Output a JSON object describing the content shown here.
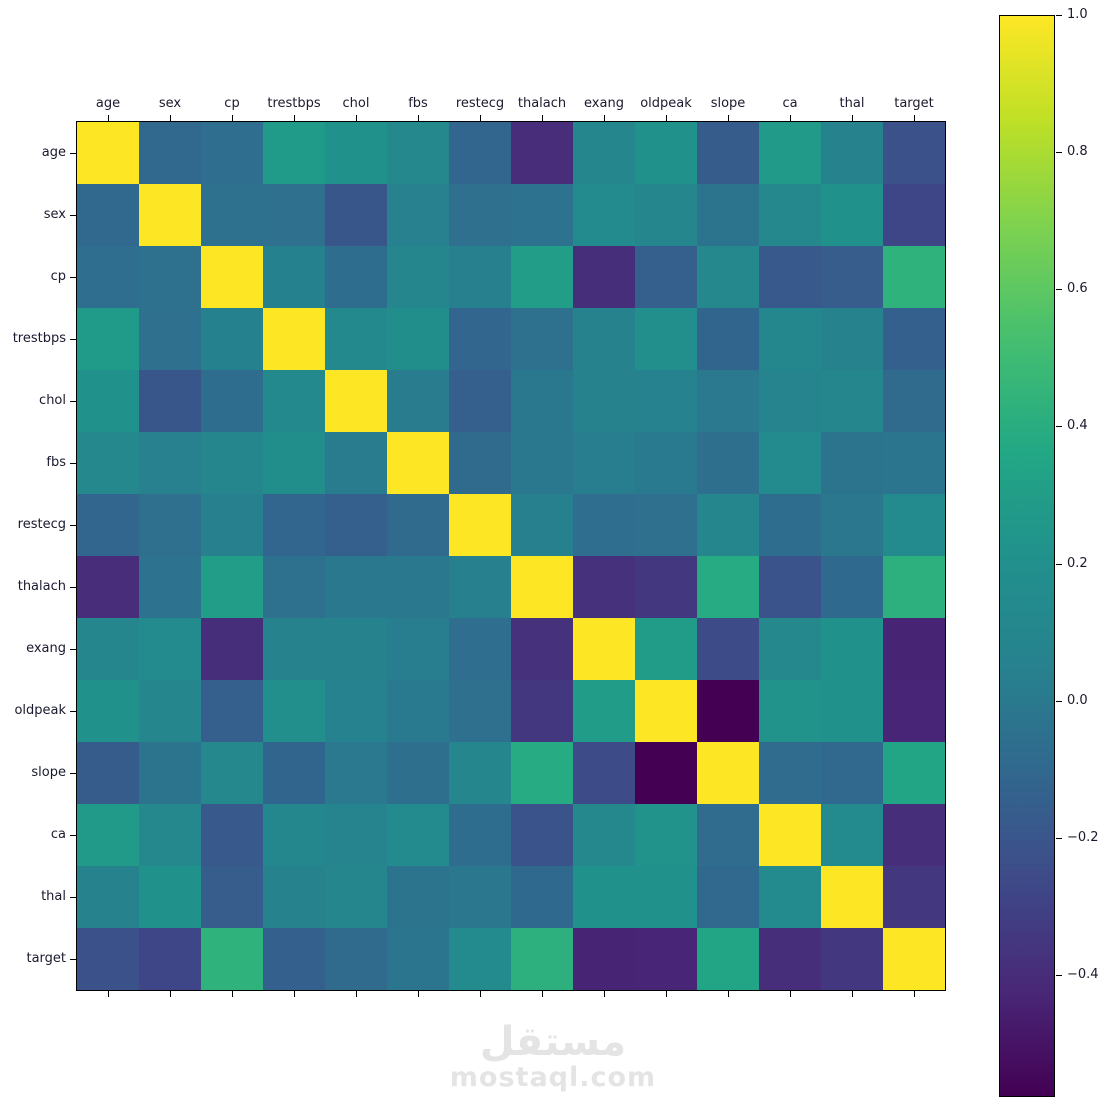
{
  "chart_data": {
    "type": "heatmap",
    "title": "",
    "colormap": "viridis",
    "vmin": -0.578,
    "vmax": 1.0,
    "grid": false,
    "legend_position": "right-colorbar",
    "colorbar_ticks": [
      1.0,
      0.8,
      0.6,
      0.4,
      0.2,
      0.0,
      -0.2,
      -0.4
    ],
    "categories": [
      "age",
      "sex",
      "cp",
      "trestbps",
      "chol",
      "fbs",
      "restecg",
      "thalach",
      "exang",
      "oldpeak",
      "slope",
      "ca",
      "thal",
      "target"
    ],
    "matrix": [
      [
        1.0,
        -0.098,
        -0.069,
        0.279,
        0.214,
        0.121,
        -0.116,
        -0.399,
        0.097,
        0.21,
        -0.169,
        0.276,
        0.068,
        -0.225
      ],
      [
        -0.098,
        1.0,
        -0.049,
        -0.057,
        -0.198,
        0.045,
        -0.058,
        -0.044,
        0.142,
        0.096,
        -0.031,
        0.118,
        0.21,
        -0.281
      ],
      [
        -0.069,
        -0.049,
        1.0,
        0.048,
        -0.077,
        0.094,
        0.044,
        0.296,
        -0.394,
        -0.149,
        0.12,
        -0.181,
        -0.162,
        0.434
      ],
      [
        0.279,
        -0.057,
        0.048,
        1.0,
        0.123,
        0.178,
        -0.114,
        -0.047,
        0.068,
        0.193,
        -0.121,
        0.101,
        0.062,
        -0.145
      ],
      [
        0.214,
        -0.198,
        -0.077,
        0.123,
        1.0,
        0.013,
        -0.151,
        -0.01,
        0.067,
        0.054,
        -0.004,
        0.071,
        0.099,
        -0.085
      ],
      [
        0.121,
        0.045,
        0.094,
        0.178,
        0.013,
        1.0,
        -0.084,
        -0.009,
        0.026,
        0.006,
        -0.06,
        0.138,
        -0.032,
        -0.028
      ],
      [
        -0.116,
        -0.058,
        0.044,
        -0.114,
        -0.151,
        -0.084,
        1.0,
        0.044,
        -0.071,
        -0.059,
        0.093,
        -0.072,
        -0.012,
        0.137
      ],
      [
        -0.399,
        -0.044,
        0.296,
        -0.047,
        -0.01,
        -0.009,
        0.044,
        1.0,
        -0.379,
        -0.344,
        0.387,
        -0.213,
        -0.096,
        0.422
      ],
      [
        0.097,
        0.142,
        -0.394,
        0.068,
        0.067,
        0.026,
        -0.071,
        -0.379,
        1.0,
        0.288,
        -0.258,
        0.116,
        0.207,
        -0.437
      ],
      [
        0.21,
        0.096,
        -0.149,
        0.193,
        0.054,
        0.006,
        -0.059,
        -0.344,
        0.288,
        1.0,
        -0.578,
        0.223,
        0.21,
        -0.431
      ],
      [
        -0.169,
        -0.031,
        0.12,
        -0.121,
        -0.004,
        -0.06,
        0.093,
        0.387,
        -0.258,
        -0.578,
        1.0,
        -0.08,
        -0.105,
        0.346
      ],
      [
        0.276,
        0.118,
        -0.181,
        0.101,
        0.071,
        0.138,
        -0.072,
        -0.213,
        0.116,
        0.223,
        -0.08,
        1.0,
        0.152,
        -0.392
      ],
      [
        0.068,
        0.21,
        -0.162,
        0.062,
        0.099,
        -0.032,
        -0.012,
        -0.096,
        0.207,
        0.21,
        -0.105,
        0.152,
        1.0,
        -0.344
      ],
      [
        -0.225,
        -0.281,
        0.434,
        -0.145,
        -0.085,
        -0.028,
        0.137,
        0.422,
        -0.437,
        -0.431,
        0.346,
        -0.392,
        -0.344,
        1.0
      ]
    ]
  },
  "watermark": {
    "arabic": "مستقل",
    "latin": "mostaql.com"
  },
  "colors": {
    "background": "#ffffff",
    "text": "#1a1a2e",
    "axis_border": "#000000",
    "watermark": "#e4e4e4",
    "viridis_min": "#440154",
    "viridis_max": "#fde725"
  }
}
